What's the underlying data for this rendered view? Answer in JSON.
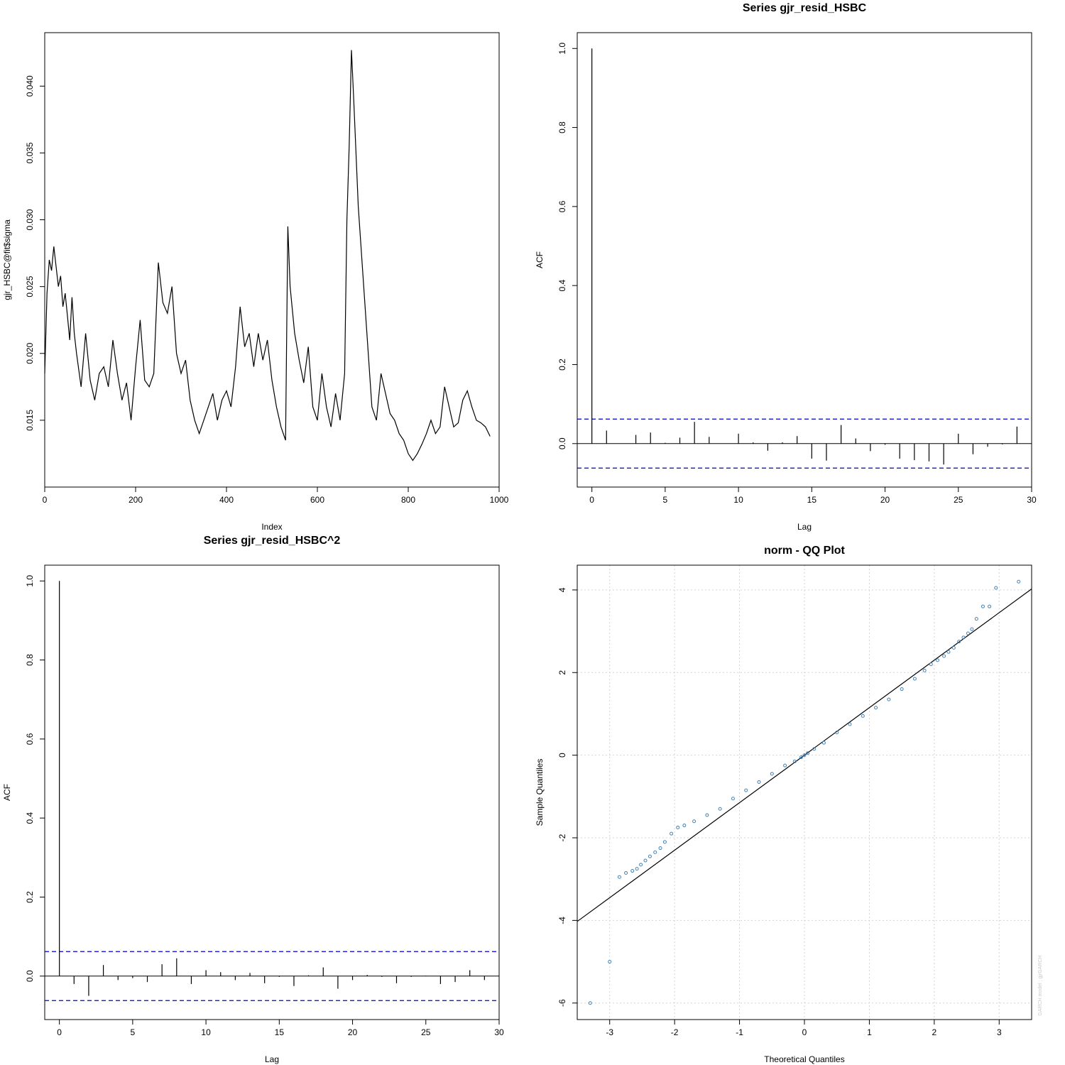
{
  "chart_data": [
    {
      "type": "line",
      "title": "",
      "xlabel": "Index",
      "ylabel": "gjr_HSBC@fit$sigma",
      "xlim": [
        0,
        1000
      ],
      "ylim": [
        0.01,
        0.044
      ],
      "xticks": [
        0,
        200,
        400,
        600,
        800,
        1000
      ],
      "xtick_labels": [
        "0",
        "200",
        "400",
        "600",
        "800",
        "1000"
      ],
      "yticks": [
        0.015,
        0.02,
        0.025,
        0.03,
        0.035,
        0.04
      ],
      "ytick_labels": [
        "0.015",
        "0.020",
        "0.025",
        "0.030",
        "0.035",
        "0.040"
      ],
      "grid": false,
      "line_color": "#000000",
      "series": [
        {
          "x": [
            0,
            5,
            10,
            15,
            20,
            25,
            30,
            35,
            40,
            45,
            50,
            55,
            60,
            65,
            70,
            80,
            90,
            100,
            110,
            120,
            130,
            140,
            150,
            160,
            170,
            180,
            190,
            200,
            210,
            220,
            230,
            240,
            250,
            260,
            270,
            280,
            290,
            300,
            310,
            320,
            330,
            340,
            350,
            360,
            370,
            380,
            390,
            400,
            410,
            420,
            430,
            440,
            450,
            460,
            470,
            480,
            490,
            500,
            510,
            520,
            530,
            535,
            540,
            550,
            560,
            570,
            580,
            590,
            600,
            610,
            620,
            630,
            640,
            650,
            660,
            665,
            670,
            675,
            680,
            690,
            700,
            710,
            720,
            730,
            740,
            750,
            760,
            770,
            780,
            790,
            800,
            810,
            820,
            830,
            840,
            850,
            860,
            870,
            880,
            890,
            900,
            910,
            920,
            930,
            940,
            950,
            960,
            970,
            980
          ],
          "y": [
            0.0185,
            0.0245,
            0.027,
            0.0262,
            0.028,
            0.0265,
            0.025,
            0.0258,
            0.0235,
            0.0245,
            0.0228,
            0.021,
            0.0242,
            0.0215,
            0.02,
            0.0175,
            0.0215,
            0.018,
            0.0165,
            0.0185,
            0.019,
            0.0175,
            0.021,
            0.0185,
            0.0165,
            0.0178,
            0.015,
            0.019,
            0.0225,
            0.018,
            0.0175,
            0.0185,
            0.0268,
            0.0238,
            0.023,
            0.025,
            0.02,
            0.0185,
            0.0195,
            0.0165,
            0.015,
            0.014,
            0.015,
            0.016,
            0.017,
            0.015,
            0.0165,
            0.0172,
            0.016,
            0.019,
            0.0235,
            0.0205,
            0.0215,
            0.019,
            0.0215,
            0.0195,
            0.021,
            0.018,
            0.016,
            0.0145,
            0.0135,
            0.0295,
            0.025,
            0.0215,
            0.0195,
            0.0178,
            0.0205,
            0.016,
            0.015,
            0.0185,
            0.016,
            0.0145,
            0.017,
            0.015,
            0.0185,
            0.03,
            0.0355,
            0.0427,
            0.039,
            0.031,
            0.026,
            0.021,
            0.016,
            0.015,
            0.0185,
            0.017,
            0.0155,
            0.015,
            0.014,
            0.0135,
            0.0125,
            0.012,
            0.0125,
            0.0132,
            0.014,
            0.015,
            0.014,
            0.0145,
            0.0175,
            0.016,
            0.0145,
            0.0148,
            0.0165,
            0.0172,
            0.016,
            0.015,
            0.0148,
            0.0145,
            0.0138
          ]
        }
      ]
    },
    {
      "type": "bar",
      "title": "Series  gjr_resid_HSBC",
      "xlabel": "Lag",
      "ylabel": "ACF",
      "xlim": [
        -1,
        30
      ],
      "ylim": [
        -0.11,
        1.04
      ],
      "xticks": [
        0,
        5,
        10,
        15,
        20,
        25,
        30
      ],
      "xtick_labels": [
        "0",
        "5",
        "10",
        "15",
        "20",
        "25",
        "30"
      ],
      "yticks": [
        0.0,
        0.2,
        0.4,
        0.6,
        0.8,
        1.0
      ],
      "ytick_labels": [
        "0.0",
        "0.2",
        "0.4",
        "0.6",
        "0.8",
        "1.0"
      ],
      "conf_band": 0.062,
      "conf_color": "#0000cc",
      "grid": false,
      "lags": [
        0,
        1,
        2,
        3,
        4,
        5,
        6,
        7,
        8,
        9,
        10,
        11,
        12,
        13,
        14,
        15,
        16,
        17,
        18,
        19,
        20,
        21,
        22,
        23,
        24,
        25,
        26,
        27,
        28,
        29
      ],
      "values": [
        1.0,
        0.033,
        0.0,
        0.022,
        0.028,
        0.002,
        0.015,
        0.055,
        0.017,
        0.0,
        0.025,
        0.003,
        -0.018,
        0.003,
        0.019,
        -0.038,
        -0.043,
        0.047,
        0.013,
        -0.019,
        -0.003,
        -0.038,
        -0.042,
        -0.045,
        -0.053,
        0.025,
        -0.027,
        -0.008,
        -0.002,
        0.043
      ]
    },
    {
      "type": "bar",
      "title": "Series  gjr_resid_HSBC^2",
      "xlabel": "Lag",
      "ylabel": "ACF",
      "xlim": [
        -1,
        30
      ],
      "ylim": [
        -0.11,
        1.04
      ],
      "xticks": [
        0,
        5,
        10,
        15,
        20,
        25,
        30
      ],
      "xtick_labels": [
        "0",
        "5",
        "10",
        "15",
        "20",
        "25",
        "30"
      ],
      "yticks": [
        0.0,
        0.2,
        0.4,
        0.6,
        0.8,
        1.0
      ],
      "ytick_labels": [
        "0.0",
        "0.2",
        "0.4",
        "0.6",
        "0.8",
        "1.0"
      ],
      "conf_band": 0.062,
      "conf_color": "#0000cc",
      "grid": false,
      "lags": [
        0,
        1,
        2,
        3,
        4,
        5,
        6,
        7,
        8,
        9,
        10,
        11,
        12,
        13,
        14,
        15,
        16,
        17,
        18,
        19,
        20,
        21,
        22,
        23,
        24,
        25,
        26,
        27,
        28,
        29
      ],
      "values": [
        1.0,
        -0.02,
        -0.05,
        0.028,
        -0.01,
        -0.005,
        -0.015,
        0.03,
        0.045,
        -0.02,
        0.015,
        0.01,
        -0.01,
        0.008,
        -0.018,
        -0.002,
        -0.025,
        0.002,
        0.022,
        -0.032,
        -0.01,
        0.003,
        -0.002,
        -0.018,
        -0.002,
        0.001,
        -0.02,
        -0.015,
        0.015,
        -0.01
      ]
    },
    {
      "type": "scatter",
      "title": "norm - QQ Plot",
      "xlabel": "Theoretical Quantiles",
      "ylabel": "Sample Quantiles",
      "xlim": [
        -3.5,
        3.5
      ],
      "ylim": [
        -6.4,
        4.6
      ],
      "xticks": [
        -3,
        -2,
        -1,
        0,
        1,
        2,
        3
      ],
      "xtick_labels": [
        "-3",
        "-2",
        "-1",
        "0",
        "1",
        "2",
        "3"
      ],
      "yticks": [
        -6,
        -4,
        -2,
        0,
        2,
        4
      ],
      "ytick_labels": [
        "-6",
        "-4",
        "-2",
        "0",
        "2",
        "4"
      ],
      "grid": true,
      "point_color": "#4682b4",
      "ref_line": {
        "slope": 1.15,
        "intercept": 0.0,
        "color": "#000000"
      },
      "series": [
        {
          "x": [
            -3.3,
            -3.0,
            -2.85,
            -2.75,
            -2.65,
            -2.58,
            -2.52,
            -2.45,
            -2.38,
            -2.3,
            -2.22,
            -2.15,
            -2.05,
            -1.95,
            -1.85,
            -1.7,
            -1.5,
            -1.3,
            -1.1,
            -0.9,
            -0.7,
            -0.5,
            -0.3,
            -0.15,
            -0.05,
            0.0,
            0.05,
            0.15,
            0.3,
            0.5,
            0.7,
            0.9,
            1.1,
            1.3,
            1.5,
            1.7,
            1.85,
            1.95,
            2.05,
            2.15,
            2.22,
            2.3,
            2.38,
            2.45,
            2.52,
            2.58,
            2.65,
            2.75,
            2.85,
            2.95,
            3.3
          ],
          "y": [
            -6.0,
            -5.0,
            -2.95,
            -2.85,
            -2.8,
            -2.75,
            -2.65,
            -2.55,
            -2.45,
            -2.35,
            -2.25,
            -2.1,
            -1.9,
            -1.75,
            -1.7,
            -1.6,
            -1.45,
            -1.3,
            -1.05,
            -0.85,
            -0.65,
            -0.45,
            -0.25,
            -0.15,
            -0.05,
            0.0,
            0.05,
            0.15,
            0.3,
            0.55,
            0.75,
            0.95,
            1.15,
            1.35,
            1.6,
            1.85,
            2.05,
            2.2,
            2.3,
            2.4,
            2.5,
            2.6,
            2.75,
            2.85,
            2.95,
            3.05,
            3.3,
            3.6,
            3.6,
            4.05,
            4.2
          ]
        }
      ],
      "watermark": "GARCH model : gjrGARCH"
    }
  ]
}
